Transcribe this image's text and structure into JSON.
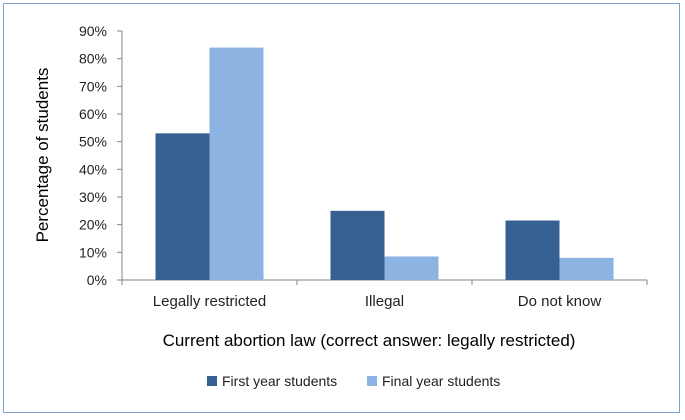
{
  "chart_data": {
    "type": "bar",
    "categories": [
      "Legally restricted",
      "Illegal",
      "Do not know"
    ],
    "series": [
      {
        "name": "First year students",
        "values": [
          53,
          25,
          21.5
        ],
        "color": "#376092"
      },
      {
        "name": "Final year students",
        "values": [
          84,
          8.5,
          8
        ],
        "color": "#8db3e2"
      }
    ],
    "ylim": [
      0,
      90
    ],
    "yticks": [
      0,
      10,
      20,
      30,
      40,
      50,
      60,
      70,
      80,
      90
    ],
    "ytick_labels": [
      "0%",
      "10%",
      "20%",
      "30%",
      "40%",
      "50%",
      "60%",
      "70%",
      "80%",
      "90%"
    ],
    "xlabel": "Current abortion law (correct answer: legally restricted)",
    "ylabel": "Percentage of students",
    "grid": false,
    "legend_position": "bottom"
  }
}
